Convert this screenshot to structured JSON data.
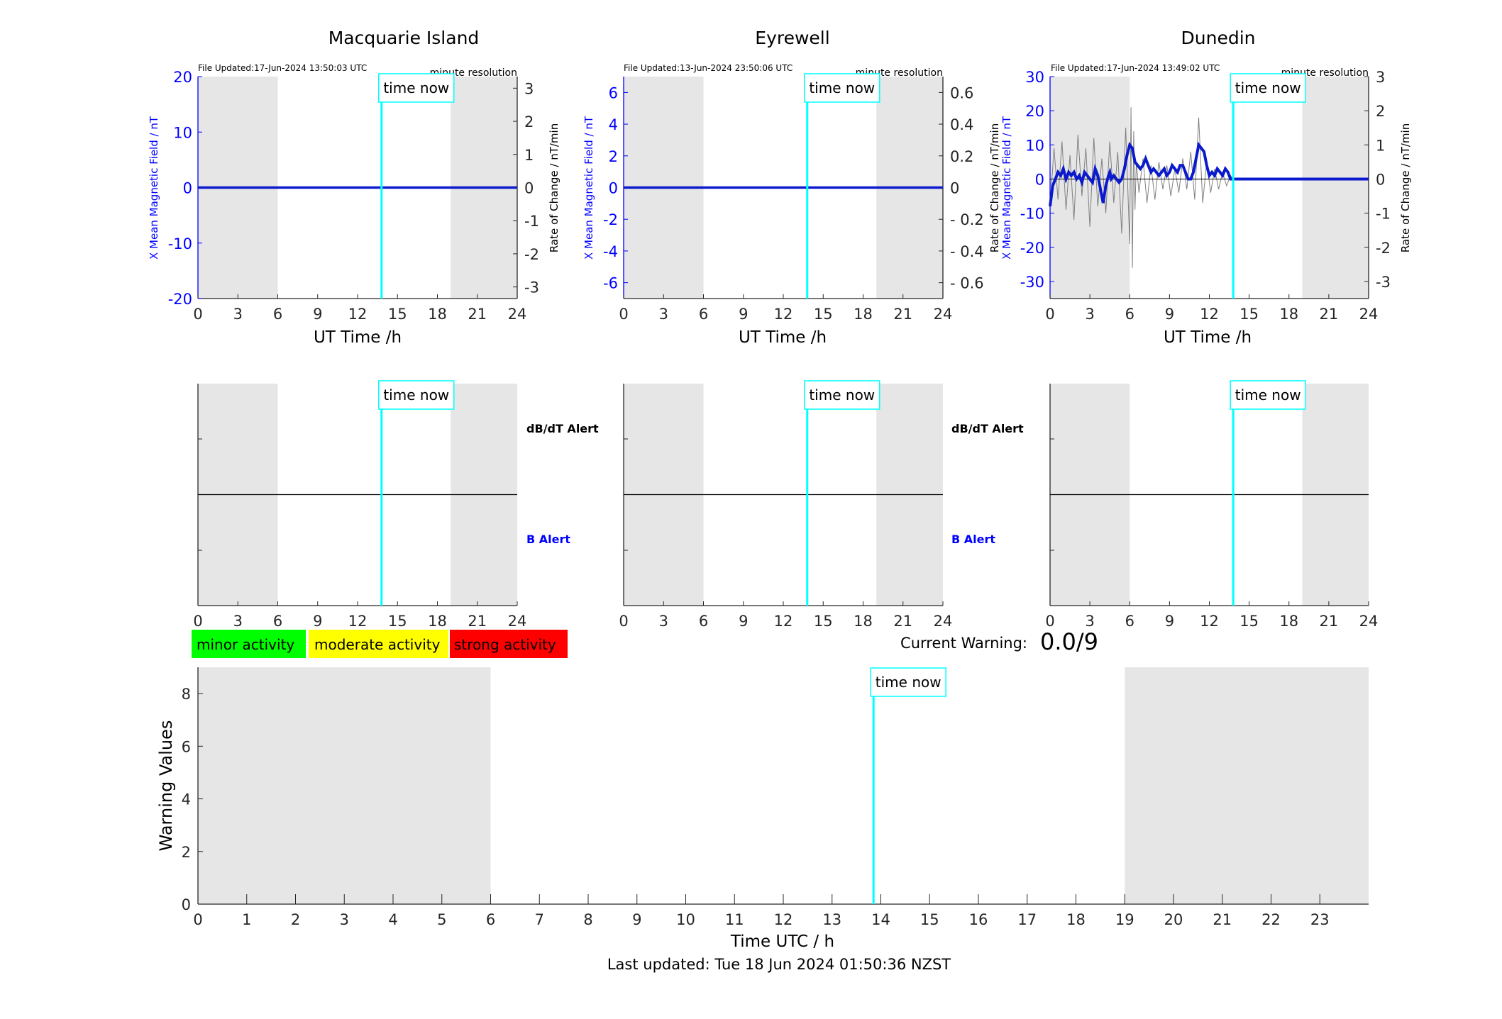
{
  "colors": {
    "b_axis": "#0000ff",
    "b_line": "#0a1acc",
    "now_line": "#00ffff",
    "shade": "#e6e6e6",
    "rate_trace": "#808080",
    "minor": "#00ff00",
    "moderate": "#ffff00",
    "strong": "#ff0000"
  },
  "stations": [
    {
      "name": "Macquarie Island",
      "file_updated": "File Updated:17-Jun-2024 13:50:03 UTC",
      "resolution": "minute resolution",
      "left_ylabel": "X Mean Magnetic Field / nT",
      "right_ylabel": "Rate of Change / nT/min",
      "left_ylim": [
        -20,
        20
      ],
      "left_ticks": [
        -20,
        -10,
        0,
        10,
        20
      ],
      "right_ylim": [
        -3.35,
        3.35
      ],
      "right_ticks": [
        -3,
        -2,
        -1,
        0,
        1,
        2,
        3
      ],
      "right_tick_labels": [
        "-3",
        "-2",
        "-1",
        "0",
        "1",
        "2",
        "3"
      ]
    },
    {
      "name": "Eyrewell",
      "file_updated": "File Updated:13-Jun-2024 23:50:06 UTC",
      "resolution": "minute resolution",
      "left_ylabel": "X Mean Magnetic Field / nT",
      "right_ylabel": "Rate of Change / nT/min",
      "left_ylim": [
        -7,
        7
      ],
      "left_ticks": [
        -6,
        -4,
        -2,
        0,
        2,
        4,
        6
      ],
      "right_ylim": [
        -0.7,
        0.7
      ],
      "right_ticks": [
        -0.6,
        -0.4,
        -0.2,
        0,
        0.2,
        0.4,
        0.6
      ],
      "right_tick_labels": [
        "- 0.6",
        "- 0.4",
        "- 0.2",
        "0",
        "0.2",
        "0.4",
        "0.6"
      ]
    },
    {
      "name": "Dunedin",
      "file_updated": "File Updated:17-Jun-2024 13:49:02 UTC",
      "resolution": "minute resolution",
      "left_ylabel": "X Mean Magnetic Field / nT",
      "right_ylabel": "Rate of Change / nT/min",
      "right_ylabel_2": "Rate of Change / nT/min",
      "left_ylim": [
        -35,
        30
      ],
      "left_ticks": [
        -30,
        -20,
        -10,
        0,
        10,
        20,
        30
      ],
      "right_ylim": [
        -3.5,
        3
      ],
      "right_ticks": [
        -3,
        -2,
        -1,
        0,
        1,
        2,
        3
      ],
      "right_tick_labels": [
        "-3",
        "-2",
        "-1",
        "0",
        "1",
        "2",
        "3"
      ]
    }
  ],
  "top_xlabel": "UT Time /h",
  "time_now_label": "time now",
  "alert_labels": {
    "dbdt": "dB/dT Alert",
    "b": "B Alert"
  },
  "legend": {
    "minor": "minor activity",
    "moderate": "moderate activity",
    "strong": "strong activity"
  },
  "current_warning_label": "Current Warning:",
  "current_warning_value": "0.0/9",
  "bottom_ylabel": "Warning Values",
  "bottom_xlabel": "Time UTC / h",
  "last_updated": "Last updated: Tue 18 Jun 2024 01:50:36 NZST",
  "chart_data": [
    {
      "type": "line",
      "title": "Macquarie Island",
      "xlabel": "UT Time /h",
      "ylabel": "X Mean Magnetic Field / nT",
      "xlim": [
        0,
        24
      ],
      "x_ticks": [
        0,
        3,
        6,
        9,
        12,
        15,
        18,
        21,
        24
      ],
      "ylim": [
        -20,
        20
      ],
      "night_shading_h": [
        [
          0,
          6
        ],
        [
          19,
          24
        ]
      ],
      "time_now_h": 13.8,
      "series": [
        {
          "name": "X Mean Magnetic Field / nT",
          "x": [
            0,
            24
          ],
          "values": [
            0,
            0
          ]
        },
        {
          "name": "Rate of Change / nT/min",
          "x": [
            0,
            24
          ],
          "values": [
            0,
            0
          ]
        }
      ]
    },
    {
      "type": "line",
      "title": "Eyrewell",
      "xlabel": "UT Time /h",
      "ylabel": "X Mean Magnetic Field / nT",
      "xlim": [
        0,
        24
      ],
      "x_ticks": [
        0,
        3,
        6,
        9,
        12,
        15,
        18,
        21,
        24
      ],
      "ylim": [
        -7,
        7
      ],
      "night_shading_h": [
        [
          0,
          6
        ],
        [
          19,
          24
        ]
      ],
      "time_now_h": 13.8,
      "series": [
        {
          "name": "X Mean Magnetic Field / nT",
          "x": [
            0,
            24
          ],
          "values": [
            0,
            0
          ]
        },
        {
          "name": "Rate of Change / nT/min",
          "x": [
            0,
            24
          ],
          "values": [
            0,
            0
          ]
        }
      ]
    },
    {
      "type": "line",
      "title": "Dunedin",
      "xlabel": "UT Time /h",
      "ylabel": "X Mean Magnetic Field / nT",
      "xlim": [
        0,
        24
      ],
      "x_ticks": [
        0,
        3,
        6,
        9,
        12,
        15,
        18,
        21,
        24
      ],
      "ylim": [
        -35,
        30
      ],
      "night_shading_h": [
        [
          0,
          6
        ],
        [
          19,
          24
        ]
      ],
      "time_now_h": 13.8,
      "series": [
        {
          "name": "X Mean Magnetic Field / nT",
          "x": [
            0,
            0.2,
            0.4,
            0.6,
            0.8,
            1.0,
            1.2,
            1.4,
            1.6,
            1.8,
            2.0,
            2.2,
            2.4,
            2.6,
            2.8,
            3.0,
            3.2,
            3.4,
            3.6,
            3.8,
            4.0,
            4.2,
            4.4,
            4.5,
            4.6,
            4.8,
            5.0,
            5.2,
            5.4,
            5.6,
            5.8,
            6.0,
            6.2,
            6.4,
            6.6,
            6.8,
            7.0,
            7.2,
            7.4,
            7.6,
            7.8,
            8.0,
            8.2,
            8.4,
            8.6,
            8.8,
            9.0,
            9.2,
            9.4,
            9.6,
            9.8,
            10.0,
            10.2,
            10.4,
            10.6,
            10.8,
            11.0,
            11.2,
            11.4,
            11.6,
            11.8,
            12.0,
            12.2,
            12.4,
            12.6,
            12.8,
            13.0,
            13.2,
            13.4,
            13.6,
            13.8,
            14.0,
            24.0
          ],
          "values": [
            -8,
            -2,
            0,
            2,
            1,
            3,
            0,
            2,
            1,
            2,
            0,
            1,
            -1,
            2,
            1,
            0,
            -1,
            3,
            1,
            -3,
            -7,
            -2,
            1,
            2,
            0,
            1,
            0,
            -1,
            0,
            3,
            7,
            10,
            9,
            5,
            4,
            3,
            4,
            6,
            4,
            2,
            3,
            2,
            1,
            2,
            3,
            1,
            2,
            4,
            3,
            2,
            4,
            4,
            2,
            0,
            0,
            2,
            6,
            10,
            9,
            8,
            4,
            1,
            2,
            1,
            3,
            2,
            1,
            3,
            2,
            0,
            0,
            0,
            0
          ]
        },
        {
          "name": "Rate of Change / nT/min",
          "x": [
            0,
            0.3,
            0.6,
            0.9,
            1.2,
            1.5,
            1.8,
            2.1,
            2.4,
            2.7,
            3.0,
            3.3,
            3.6,
            3.9,
            4.2,
            4.5,
            4.8,
            5.1,
            5.4,
            5.7,
            6.0,
            6.1,
            6.2,
            6.3,
            6.4,
            6.5,
            6.7,
            7.0,
            7.3,
            7.6,
            7.9,
            8.2,
            8.5,
            8.8,
            9.1,
            9.4,
            9.7,
            10.0,
            10.3,
            10.6,
            10.9,
            11.2,
            11.5,
            11.8,
            12.1,
            12.4,
            12.7,
            13.0,
            13.3,
            13.6,
            13.8,
            14.0,
            24.0
          ],
          "values": [
            -0.8,
            0.9,
            -0.6,
            1.1,
            -0.9,
            0.7,
            -1.2,
            1.3,
            -0.5,
            0.9,
            -1.4,
            1.2,
            -0.8,
            0.6,
            -1.0,
            1.1,
            -0.7,
            0.8,
            -1.6,
            1.5,
            -1.9,
            2.1,
            -2.6,
            1.4,
            -0.9,
            0.5,
            -0.4,
            0.6,
            -0.7,
            0.4,
            -0.6,
            0.5,
            -0.3,
            0.4,
            -0.5,
            0.3,
            -0.4,
            0.6,
            -0.3,
            0.8,
            -0.6,
            1.8,
            -0.7,
            0.5,
            -0.4,
            0.3,
            -0.3,
            0.2,
            -0.2,
            0.1,
            0,
            0,
            0
          ]
        }
      ]
    },
    {
      "type": "line",
      "title": "",
      "xlabel": "Time UTC / h",
      "ylabel": "Warning Values",
      "xlim": [
        0,
        24
      ],
      "x_ticks": [
        0,
        1,
        2,
        3,
        4,
        5,
        6,
        7,
        8,
        9,
        10,
        11,
        12,
        13,
        14,
        15,
        16,
        17,
        18,
        19,
        20,
        21,
        22,
        23
      ],
      "ylim": [
        0,
        9
      ],
      "y_ticks": [
        0,
        2,
        4,
        6,
        8
      ],
      "night_shading_h": [
        [
          0,
          6
        ],
        [
          19,
          24
        ]
      ],
      "time_now_h": 13.85,
      "current_warning": 0.0
    }
  ]
}
